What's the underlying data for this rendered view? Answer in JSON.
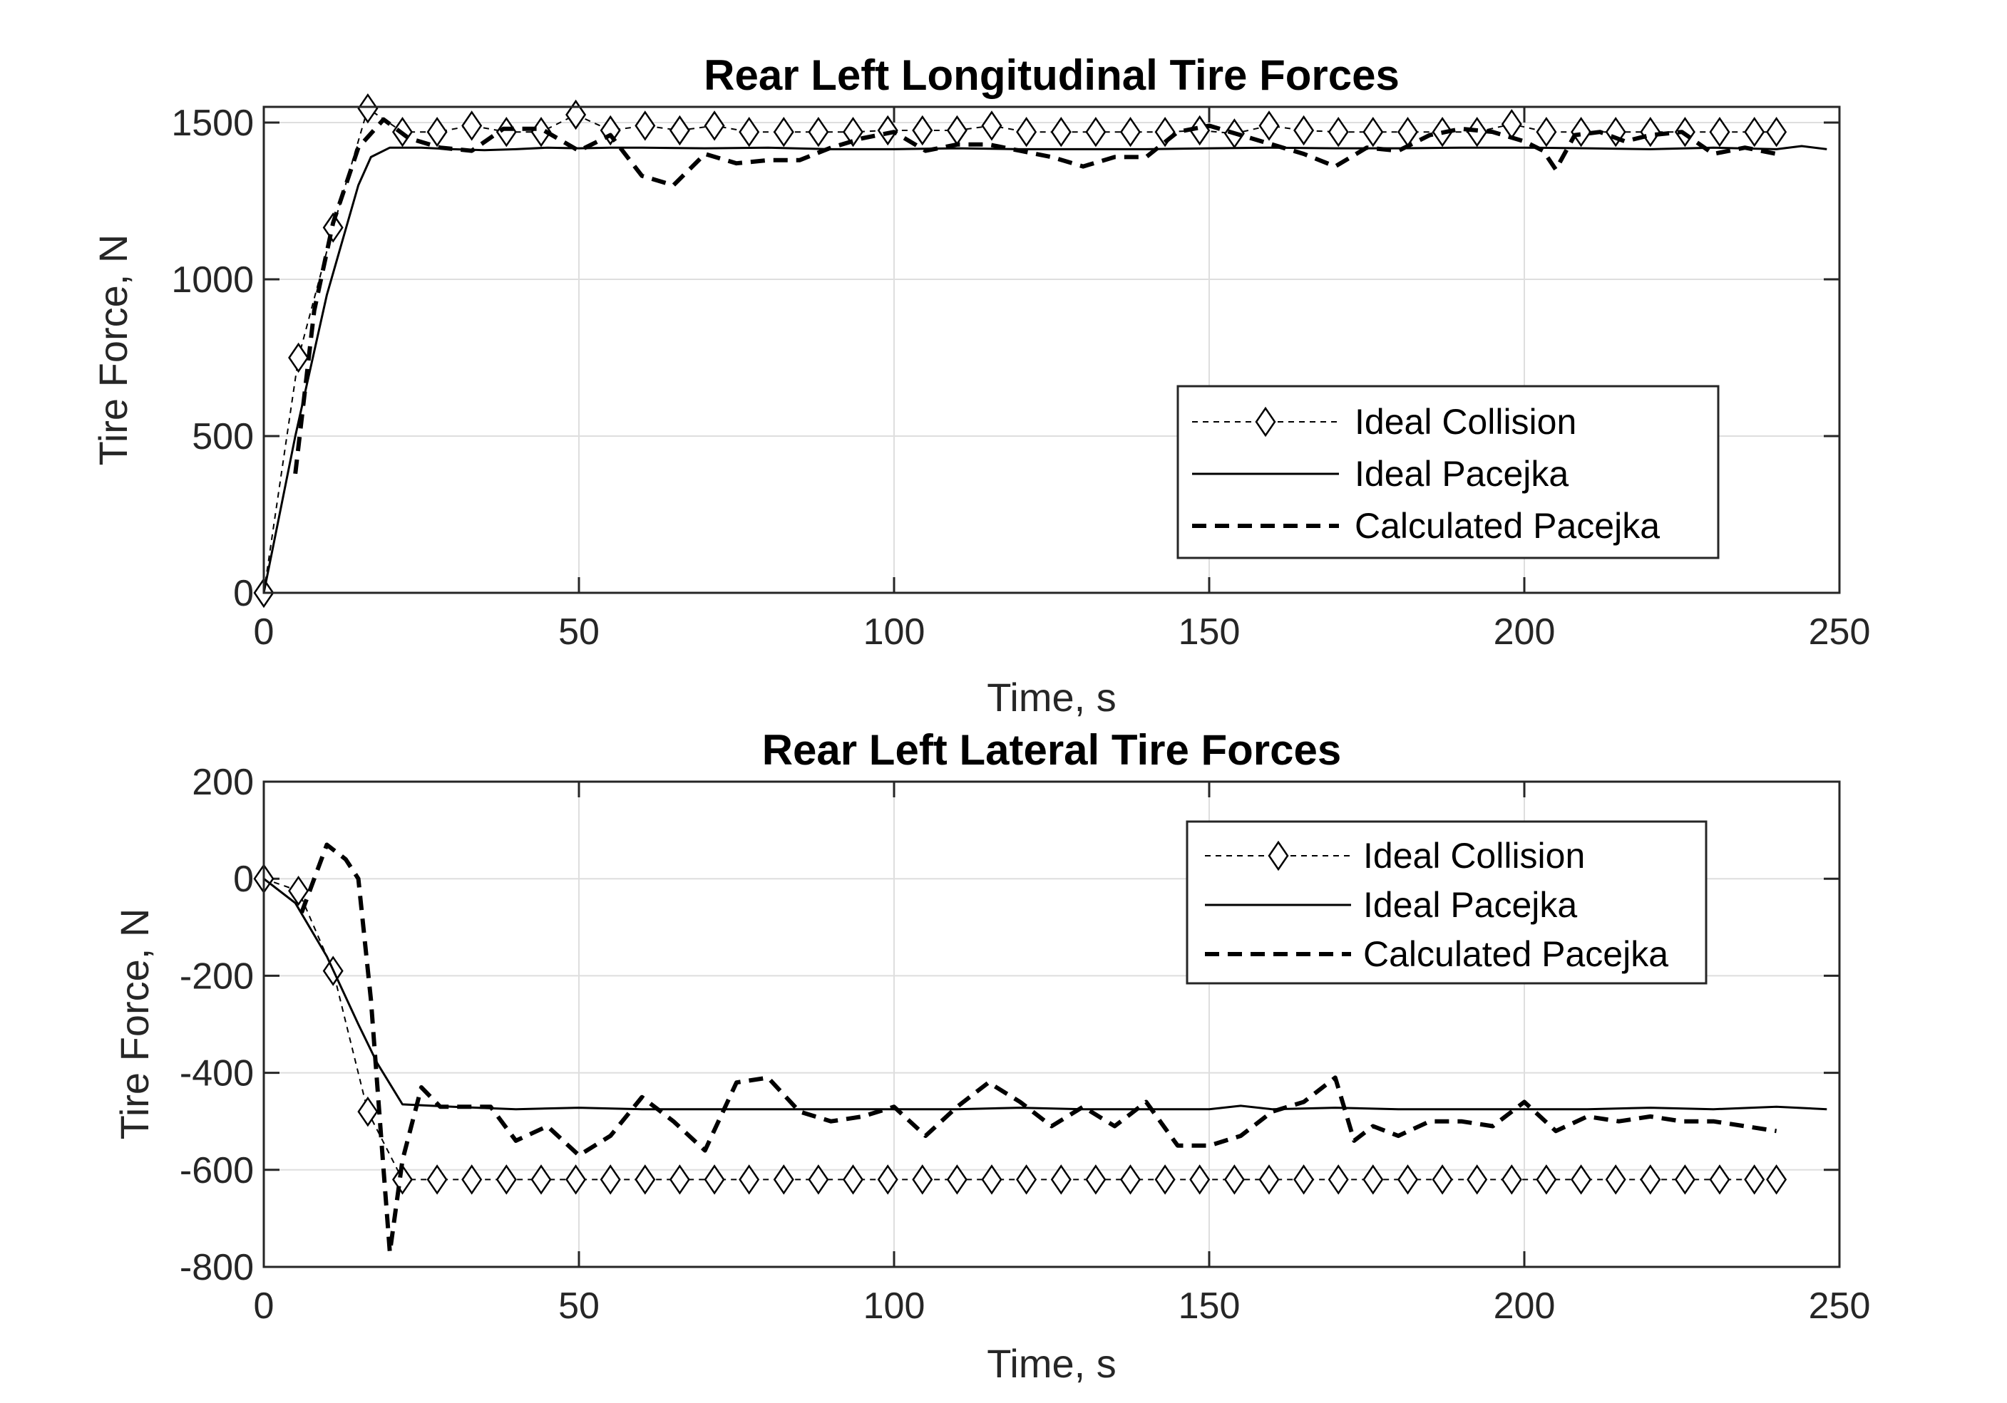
{
  "figure": {
    "background": "#ffffff",
    "axis_color": "#262626",
    "grid_color": "#dedede"
  },
  "chart_data": [
    {
      "type": "line",
      "title": "Rear Left Longitudinal Tire Forces",
      "xlabel": "Time, s",
      "ylabel": "Tire Force, N",
      "xlim": [
        0,
        250
      ],
      "ylim": [
        0,
        1550
      ],
      "xticks": [
        0,
        50,
        100,
        150,
        200,
        250
      ],
      "yticks": [
        0,
        500,
        1000,
        1500
      ],
      "grid": true,
      "legend_position": "bottom-right",
      "series": [
        {
          "name": "Ideal Collision",
          "style": "dotted-diamond",
          "x": [
            0,
            5.5,
            11,
            16.5,
            22,
            27.5,
            33,
            38.5,
            44,
            49.5,
            55,
            60.5,
            66,
            71.5,
            77,
            82.5,
            88,
            93.5,
            99,
            104.5,
            110,
            115.5,
            121,
            126.5,
            132,
            137.5,
            143,
            148.5,
            154,
            159.5,
            165,
            170.5,
            176,
            181.5,
            187,
            192.5,
            198,
            203.5,
            209,
            214.5,
            220,
            225.5,
            231,
            236.5,
            240
          ],
          "y": [
            0,
            750,
            1165,
            1545,
            1470,
            1470,
            1490,
            1470,
            1470,
            1525,
            1475,
            1490,
            1475,
            1490,
            1470,
            1470,
            1470,
            1470,
            1475,
            1475,
            1475,
            1490,
            1470,
            1470,
            1470,
            1470,
            1470,
            1475,
            1465,
            1490,
            1475,
            1470,
            1470,
            1470,
            1470,
            1470,
            1495,
            1470,
            1470,
            1470,
            1470,
            1470,
            1470,
            1470,
            1470
          ]
        },
        {
          "name": "Ideal Pacejka",
          "style": "solid",
          "x": [
            0,
            5,
            10,
            15,
            17,
            20,
            25,
            30,
            35,
            40,
            45,
            50,
            55,
            60,
            70,
            80,
            90,
            100,
            110,
            120,
            130,
            140,
            150,
            160,
            170,
            180,
            190,
            200,
            210,
            220,
            230,
            240,
            244,
            248
          ],
          "y": [
            0,
            500,
            950,
            1300,
            1390,
            1420,
            1420,
            1415,
            1412,
            1415,
            1420,
            1418,
            1420,
            1420,
            1418,
            1420,
            1415,
            1415,
            1418,
            1415,
            1415,
            1415,
            1418,
            1420,
            1418,
            1418,
            1420,
            1420,
            1418,
            1415,
            1420,
            1415,
            1425,
            1415
          ]
        },
        {
          "name": "Calculated Pacejka",
          "style": "dashed",
          "x": [
            5,
            8,
            11,
            15,
            19,
            23,
            28,
            33,
            38,
            44,
            50,
            55,
            60,
            65,
            70,
            75,
            80,
            85,
            90,
            95,
            100,
            105,
            110,
            115,
            120,
            125,
            130,
            135,
            140,
            145,
            150,
            155,
            160,
            165,
            170,
            175,
            180,
            185,
            190,
            195,
            200,
            203,
            205,
            208,
            212,
            216,
            220,
            225,
            230,
            235,
            240
          ],
          "y": [
            380,
            900,
            1180,
            1420,
            1510,
            1450,
            1420,
            1410,
            1480,
            1480,
            1410,
            1460,
            1330,
            1300,
            1400,
            1370,
            1380,
            1380,
            1420,
            1450,
            1470,
            1410,
            1430,
            1430,
            1410,
            1390,
            1360,
            1390,
            1390,
            1470,
            1490,
            1460,
            1430,
            1400,
            1360,
            1420,
            1410,
            1460,
            1480,
            1470,
            1440,
            1410,
            1350,
            1460,
            1470,
            1440,
            1460,
            1470,
            1400,
            1420,
            1400
          ]
        }
      ]
    },
    {
      "type": "line",
      "title": "Rear Left Lateral Tire Forces",
      "xlabel": "Time, s",
      "ylabel": "Tire Force, N",
      "xlim": [
        0,
        250
      ],
      "ylim": [
        -800,
        200
      ],
      "xticks": [
        0,
        50,
        100,
        150,
        200,
        250
      ],
      "yticks": [
        -800,
        -600,
        -400,
        -200,
        0,
        200
      ],
      "grid": true,
      "legend_position": "top-right",
      "series": [
        {
          "name": "Ideal Collision",
          "style": "dotted-diamond",
          "x": [
            0,
            5.5,
            11,
            16.5,
            22,
            27.5,
            33,
            38.5,
            44,
            49.5,
            55,
            60.5,
            66,
            71.5,
            77,
            82.5,
            88,
            93.5,
            99,
            104.5,
            110,
            115.5,
            121,
            126.5,
            132,
            137.5,
            143,
            148.5,
            154,
            159.5,
            165,
            170.5,
            176,
            181.5,
            187,
            192.5,
            198,
            203.5,
            209,
            214.5,
            220,
            225.5,
            231,
            236.5,
            240
          ],
          "y": [
            0,
            -25,
            -190,
            -480,
            -620,
            -620,
            -620,
            -620,
            -620,
            -620,
            -620,
            -620,
            -620,
            -620,
            -620,
            -620,
            -620,
            -620,
            -620,
            -620,
            -620,
            -620,
            -620,
            -620,
            -620,
            -620,
            -620,
            -620,
            -620,
            -620,
            -620,
            -620,
            -620,
            -620,
            -620,
            -620,
            -620,
            -620,
            -620,
            -620,
            -620,
            -620,
            -620,
            -620,
            -620
          ]
        },
        {
          "name": "Ideal Pacejka",
          "style": "solid",
          "x": [
            0,
            5,
            10,
            15,
            18,
            22,
            30,
            40,
            50,
            60,
            70,
            80,
            90,
            100,
            110,
            120,
            130,
            140,
            150,
            155,
            160,
            170,
            180,
            190,
            200,
            210,
            220,
            230,
            240,
            248
          ],
          "y": [
            0,
            -50,
            -160,
            -300,
            -380,
            -465,
            -470,
            -475,
            -472,
            -475,
            -475,
            -475,
            -475,
            -475,
            -475,
            -472,
            -475,
            -475,
            -475,
            -468,
            -475,
            -472,
            -475,
            -475,
            -475,
            -475,
            -472,
            -475,
            -470,
            -475
          ]
        },
        {
          "name": "Calculated Pacejka",
          "style": "dashed",
          "x": [
            6,
            10,
            13,
            15,
            17,
            19,
            20,
            22,
            25,
            28,
            32,
            36,
            40,
            45,
            50,
            55,
            60,
            65,
            70,
            75,
            80,
            85,
            90,
            95,
            100,
            105,
            110,
            115,
            120,
            125,
            130,
            135,
            140,
            145,
            150,
            155,
            160,
            165,
            170,
            173,
            176,
            180,
            185,
            190,
            195,
            200,
            205,
            210,
            215,
            220,
            225,
            230,
            235,
            240
          ],
          "y": [
            -70,
            70,
            40,
            0,
            -250,
            -600,
            -770,
            -580,
            -430,
            -470,
            -470,
            -470,
            -540,
            -510,
            -570,
            -530,
            -450,
            -500,
            -560,
            -420,
            -410,
            -480,
            -500,
            -490,
            -470,
            -530,
            -470,
            -420,
            -460,
            -510,
            -470,
            -510,
            -460,
            -550,
            -550,
            -530,
            -480,
            -460,
            -410,
            -540,
            -510,
            -530,
            -500,
            -500,
            -510,
            -460,
            -520,
            -490,
            -500,
            -490,
            -500,
            -500,
            -510,
            -520
          ]
        }
      ]
    }
  ]
}
